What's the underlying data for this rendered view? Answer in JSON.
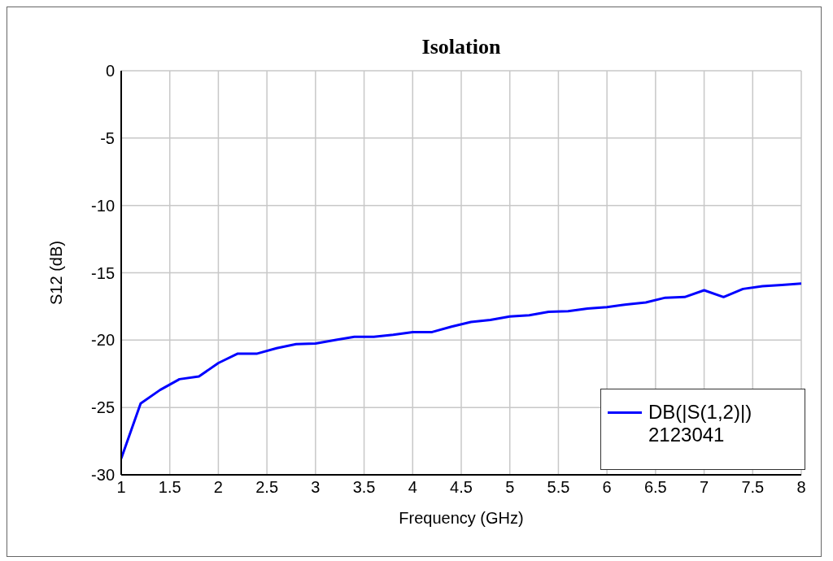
{
  "chart_data": {
    "type": "line",
    "title": "Isolation",
    "xlabel": "Frequency (GHz)",
    "ylabel": "S12 (dB)",
    "x": [
      1,
      1.2,
      1.4,
      1.6,
      1.8,
      2,
      2.2,
      2.4,
      2.6,
      2.8,
      3,
      3.2,
      3.4,
      3.6,
      3.8,
      4,
      4.2,
      4.4,
      4.6,
      4.8,
      5,
      5.2,
      5.4,
      5.6,
      5.8,
      6,
      6.2,
      6.4,
      6.6,
      6.8,
      7,
      7.2,
      7.4,
      7.6,
      7.8,
      8
    ],
    "series": [
      {
        "name": "DB(|S(1,2)|)",
        "color": "#0000ff",
        "values": [
          -28.8,
          -24.7,
          -23.7,
          -22.9,
          -22.7,
          -21.7,
          -21.0,
          -21.0,
          -20.6,
          -20.3,
          -20.25,
          -20.0,
          -19.75,
          -19.75,
          -19.6,
          -19.4,
          -19.4,
          -19.0,
          -18.65,
          -18.5,
          -18.25,
          -18.15,
          -17.9,
          -17.85,
          -17.65,
          -17.55,
          -17.35,
          -17.2,
          -16.85,
          -16.8,
          -16.3,
          -16.8,
          -16.2,
          -16.0,
          -15.9,
          -15.8
        ]
      }
    ],
    "annotations": [
      "2123041"
    ],
    "xlim": [
      1,
      8
    ],
    "xticks": [
      1,
      1.5,
      2,
      2.5,
      3,
      3.5,
      4,
      4.5,
      5,
      5.5,
      6,
      6.5,
      7,
      7.5,
      8
    ],
    "ylim": [
      -30,
      0
    ],
    "yticks": [
      -30,
      -25,
      -20,
      -15,
      -10,
      -5,
      0
    ],
    "grid": true,
    "legend": "bottom right",
    "marker": "none",
    "line_style": "solid"
  }
}
